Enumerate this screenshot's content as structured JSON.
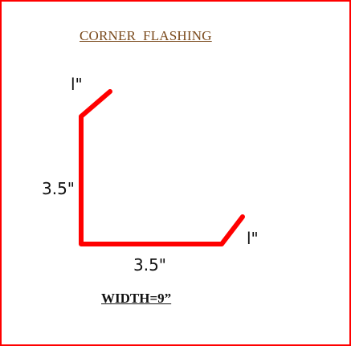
{
  "title": "CORNER  FLASHING",
  "dimensions": {
    "top_lip": "l\"",
    "vertical_leg": "3.5\"",
    "horizontal_leg": "3.5\"",
    "right_lip": "l\""
  },
  "width_label": "WIDTH=9”",
  "colors": {
    "border": "#ff0000",
    "profile_line": "#ff0000",
    "title": "#7a4a1c",
    "text": "#111111"
  }
}
